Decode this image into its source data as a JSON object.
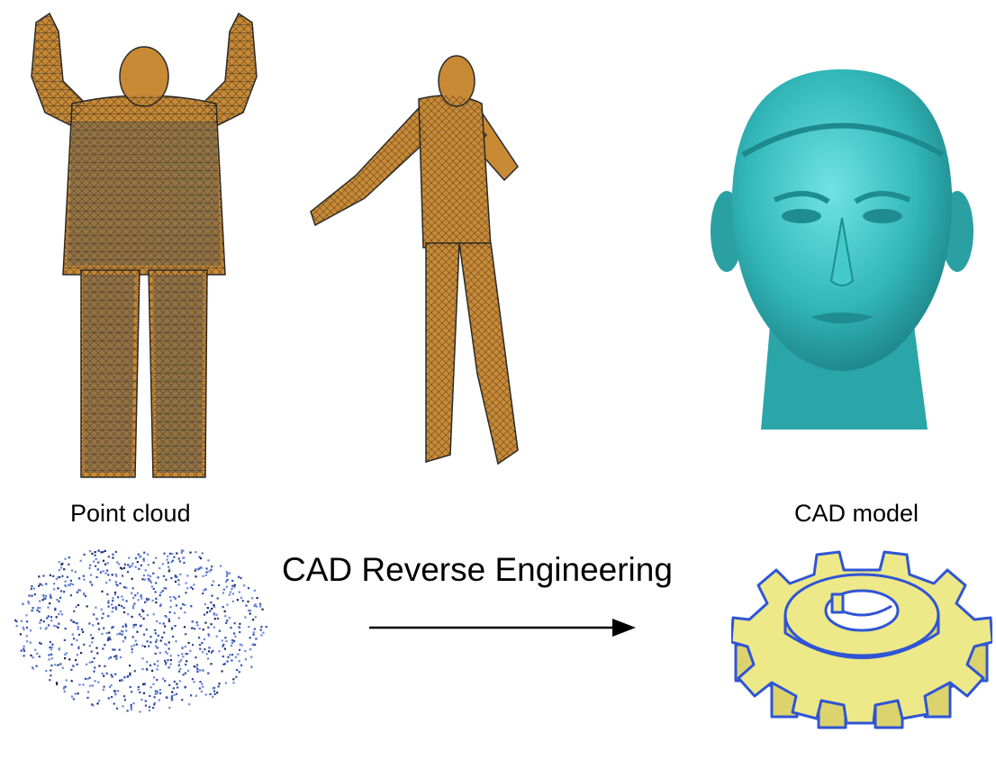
{
  "labels": {
    "point_cloud": "Point cloud",
    "cad_model": "CAD model",
    "process": "CAD Reverse Engineering"
  },
  "colors": {
    "body_mesh": "#c98a35",
    "mesh_wire": "#1a1a1a",
    "head_model": "#33b7b9",
    "gear_face": "#ede888",
    "gear_side": "#ddd36c",
    "gear_edge": "#2f55d4",
    "points": "#2f4fb0",
    "arrow": "#000000"
  },
  "icons": {
    "figure_1": "person-arms-raised-mesh-icon",
    "figure_2": "person-pointing-mesh-icon",
    "figure_3": "head-model-icon",
    "figure_4": "point-cloud-icon",
    "figure_5": "gear-cad-icon",
    "connector": "right-arrow-icon"
  }
}
